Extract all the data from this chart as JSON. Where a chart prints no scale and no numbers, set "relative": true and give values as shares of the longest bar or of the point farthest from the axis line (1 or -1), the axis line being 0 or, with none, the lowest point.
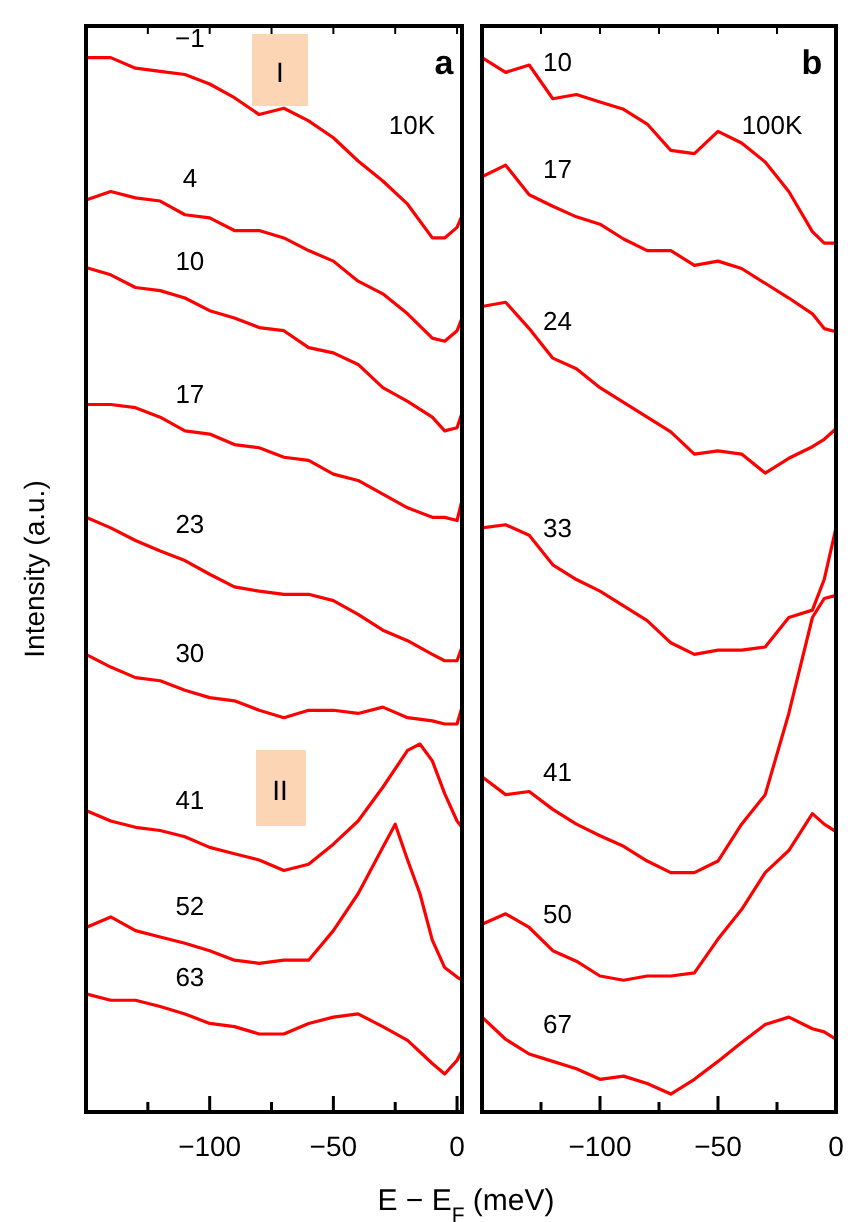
{
  "chart_data": [
    {
      "type": "line",
      "relative": true,
      "ylabel": "Intensity (a.u.)",
      "xlabel": "E − E$_{F}$ (meV)",
      "annotations": [
        "a",
        "10K",
        "I",
        "II"
      ],
      "xlim": [
        -150,
        2
      ],
      "xticks": [
        {
          "value": -125,
          "label": null
        },
        {
          "value": -100,
          "label": "−100"
        },
        {
          "value": -75,
          "label": null
        },
        {
          "value": -50,
          "label": "−50"
        },
        {
          "value": -25,
          "label": null
        },
        0
      ],
      "x": [
        -150,
        -140,
        -130,
        -120,
        -110,
        -100,
        -90,
        -80,
        -70,
        -60,
        -50,
        -40,
        -30,
        -20,
        -10,
        -5,
        0,
        2
      ],
      "series": [
        {
          "name": "−1",
          "color": "#ff0000",
          "values": [
            1.0,
            1.0,
            0.99,
            0.987,
            0.984,
            0.975,
            0.962,
            0.946,
            0.952,
            0.94,
            0.924,
            0.902,
            0.883,
            0.861,
            0.829,
            0.829,
            0.839,
            0.85
          ]
        },
        {
          "name": "4",
          "color": "#ff0000",
          "values": [
            0.865,
            0.873,
            0.867,
            0.864,
            0.851,
            0.848,
            0.836,
            0.836,
            0.829,
            0.817,
            0.807,
            0.788,
            0.776,
            0.757,
            0.734,
            0.731,
            0.741,
            0.753
          ]
        },
        {
          "name": "10",
          "color": "#ff0000",
          "values": [
            0.801,
            0.794,
            0.782,
            0.779,
            0.772,
            0.76,
            0.753,
            0.744,
            0.741,
            0.725,
            0.72,
            0.709,
            0.687,
            0.674,
            0.659,
            0.646,
            0.649,
            0.663
          ]
        },
        {
          "name": "17",
          "color": "#ff0000",
          "values": [
            0.671,
            0.671,
            0.668,
            0.659,
            0.646,
            0.643,
            0.633,
            0.63,
            0.621,
            0.618,
            0.605,
            0.599,
            0.586,
            0.573,
            0.564,
            0.564,
            0.561,
            0.58
          ]
        },
        {
          "name": "23",
          "color": "#ff0000",
          "values": [
            0.564,
            0.554,
            0.542,
            0.532,
            0.523,
            0.51,
            0.498,
            0.494,
            0.491,
            0.491,
            0.485,
            0.472,
            0.457,
            0.447,
            0.434,
            0.428,
            0.428,
            0.441
          ]
        },
        {
          "name": "30",
          "color": "#ff0000",
          "values": [
            0.434,
            0.422,
            0.412,
            0.409,
            0.4,
            0.393,
            0.39,
            0.381,
            0.374,
            0.381,
            0.381,
            0.378,
            0.384,
            0.374,
            0.371,
            0.368,
            0.368,
            0.384
          ]
        },
        {
          "name": "41",
          "color": "#ff0000",
          "x": [
            -150,
            -140,
            -130,
            -120,
            -110,
            -100,
            -90,
            -80,
            -70,
            -60,
            -50,
            -40,
            -30,
            -20,
            -15,
            -10,
            -5,
            0,
            2
          ],
          "values": [
            0.286,
            0.276,
            0.27,
            0.267,
            0.261,
            0.251,
            0.245,
            0.239,
            0.229,
            0.235,
            0.254,
            0.276,
            0.308,
            0.343,
            0.349,
            0.333,
            0.302,
            0.276,
            0.27
          ]
        },
        {
          "name": "52",
          "color": "#ff0000",
          "x": [
            -150,
            -140,
            -130,
            -120,
            -110,
            -100,
            -90,
            -80,
            -70,
            -60,
            -50,
            -40,
            -30,
            -25,
            -20,
            -15,
            -10,
            -5,
            0,
            2
          ],
          "values": [
            0.175,
            0.185,
            0.172,
            0.166,
            0.16,
            0.153,
            0.144,
            0.141,
            0.144,
            0.144,
            0.172,
            0.207,
            0.251,
            0.273,
            0.239,
            0.207,
            0.163,
            0.137,
            0.128,
            0.125
          ]
        },
        {
          "name": "63",
          "color": "#ff0000",
          "values": [
            0.112,
            0.106,
            0.106,
            0.1,
            0.093,
            0.084,
            0.081,
            0.074,
            0.074,
            0.084,
            0.09,
            0.093,
            0.081,
            0.068,
            0.046,
            0.036,
            0.049,
            0.058
          ]
        }
      ]
    },
    {
      "type": "line",
      "relative": true,
      "annotations": [
        "b",
        "100K"
      ],
      "xlim": [
        -150,
        0
      ],
      "xticks": [
        {
          "value": -125,
          "label": null
        },
        {
          "value": -100,
          "label": "−100"
        },
        {
          "value": -75,
          "label": null
        },
        {
          "value": -50,
          "label": "−50"
        },
        {
          "value": -25,
          "label": null
        },
        0
      ],
      "x": [
        -150,
        -140,
        -130,
        -120,
        -110,
        -100,
        -90,
        -80,
        -70,
        -60,
        -50,
        -40,
        -30,
        -20,
        -10,
        -5,
        0
      ],
      "series": [
        {
          "name": "10",
          "color": "#ff0000",
          "values": [
            1.0,
            0.986,
            0.993,
            0.961,
            0.965,
            0.958,
            0.951,
            0.937,
            0.912,
            0.909,
            0.93,
            0.919,
            0.901,
            0.873,
            0.835,
            0.824,
            0.824
          ]
        },
        {
          "name": "17",
          "color": "#ff0000",
          "values": [
            0.887,
            0.898,
            0.87,
            0.859,
            0.849,
            0.842,
            0.828,
            0.817,
            0.817,
            0.803,
            0.807,
            0.8,
            0.786,
            0.772,
            0.757,
            0.743,
            0.74
          ]
        },
        {
          "name": "24",
          "color": "#ff0000",
          "values": [
            0.764,
            0.768,
            0.743,
            0.715,
            0.705,
            0.687,
            0.673,
            0.659,
            0.645,
            0.624,
            0.627,
            0.624,
            0.606,
            0.62,
            0.631,
            0.638,
            0.648
          ]
        },
        {
          "name": "33",
          "color": "#ff0000",
          "values": [
            0.554,
            0.557,
            0.547,
            0.519,
            0.505,
            0.494,
            0.48,
            0.466,
            0.445,
            0.434,
            0.438,
            0.438,
            0.441,
            0.469,
            0.476,
            0.505,
            0.554
          ]
        },
        {
          "name": "41",
          "color": "#ff0000",
          "values": [
            0.318,
            0.301,
            0.304,
            0.287,
            0.273,
            0.262,
            0.252,
            0.238,
            0.227,
            0.227,
            0.238,
            0.273,
            0.301,
            0.378,
            0.469,
            0.487,
            0.49
          ]
        },
        {
          "name": "50",
          "color": "#ff0000",
          "values": [
            0.178,
            0.188,
            0.175,
            0.153,
            0.143,
            0.129,
            0.125,
            0.129,
            0.129,
            0.132,
            0.164,
            0.192,
            0.227,
            0.248,
            0.283,
            0.273,
            0.266
          ]
        },
        {
          "name": "67",
          "color": "#ff0000",
          "values": [
            0.09,
            0.069,
            0.055,
            0.048,
            0.041,
            0.031,
            0.034,
            0.027,
            0.017,
            0.031,
            0.048,
            0.066,
            0.083,
            0.09,
            0.079,
            0.076,
            0.069
          ]
        }
      ]
    }
  ]
}
